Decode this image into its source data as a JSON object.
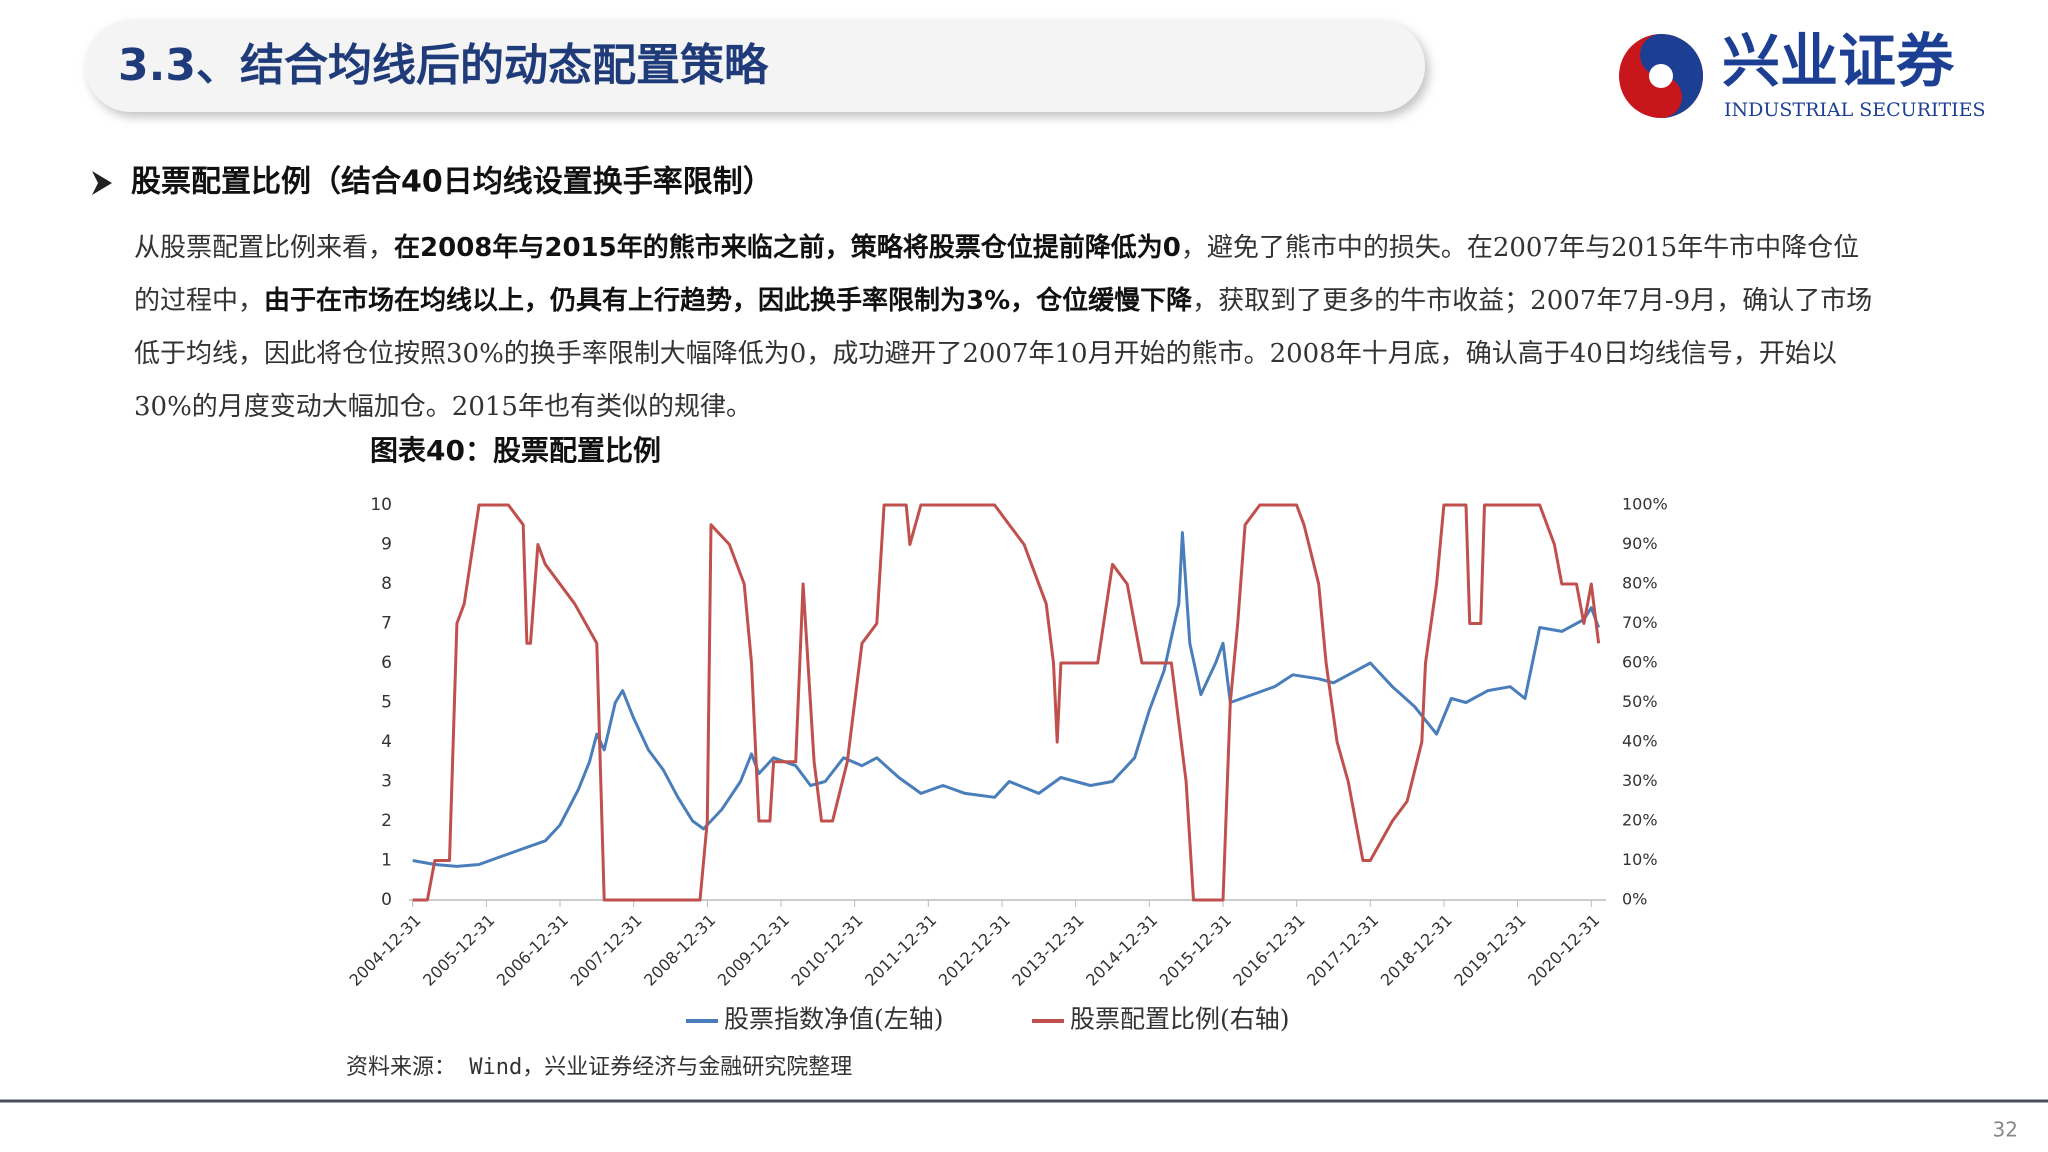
{
  "header": {
    "title": "3.3、结合均线后的动态配置策略",
    "logo_cn": "兴业证券",
    "logo_en": "INDUSTRIAL SECURITIES"
  },
  "bullet": "股票配置比例（结合40日均线设置换手率限制）",
  "paragraph": [
    {
      "text": "从股票配置比例来看，",
      "bold": false
    },
    {
      "text": "在2008年与2015年的熊市来临之前，策略将股票仓位提前降低为0",
      "bold": true
    },
    {
      "text": "，避免了熊市中的损失。在2007年与2015年牛市中降仓位的过程中，",
      "bold": false
    },
    {
      "text": "由于在市场在均线以上，仍具有上行趋势，因此换手率限制为3%，仓位缓慢下降",
      "bold": true
    },
    {
      "text": "，获取到了更多的牛市收益；2007年7月-9月，确认了市场低于均线，因此将仓位按照30%的换手率限制大幅降低为0，成功避开了2007年10月开始的熊市。2008年十月底，确认高于40日均线信号，开始以30%的月度变动大幅加仓。2015年也有类似的规律。",
      "bold": false
    }
  ],
  "chart_data": {
    "type": "line",
    "title": "图表40：股票配置比例",
    "xlim": [
      2004.95,
      2021.2
    ],
    "xticks": [
      {
        "value": 2005,
        "label": "2004-12-31"
      },
      {
        "value": 2006,
        "label": "2005-12-31"
      },
      {
        "value": 2007,
        "label": "2006-12-31"
      },
      {
        "value": 2008,
        "label": "2007-12-31"
      },
      {
        "value": 2009,
        "label": "2008-12-31"
      },
      {
        "value": 2010,
        "label": "2009-12-31"
      },
      {
        "value": 2011,
        "label": "2010-12-31"
      },
      {
        "value": 2012,
        "label": "2011-12-31"
      },
      {
        "value": 2013,
        "label": "2012-12-31"
      },
      {
        "value": 2014,
        "label": "2013-12-31"
      },
      {
        "value": 2015,
        "label": "2014-12-31"
      },
      {
        "value": 2016,
        "label": "2015-12-31"
      },
      {
        "value": 2017,
        "label": "2016-12-31"
      },
      {
        "value": 2018,
        "label": "2017-12-31"
      },
      {
        "value": 2019,
        "label": "2018-12-31"
      },
      {
        "value": 2020,
        "label": "2019-12-31"
      },
      {
        "value": 2021,
        "label": "2020-12-31"
      }
    ],
    "ylim": [
      0,
      10
    ],
    "yticks": [
      0,
      1,
      2,
      3,
      4,
      5,
      6,
      7,
      8,
      9,
      10
    ],
    "y2lim": [
      0,
      100
    ],
    "y2ticks": [
      {
        "value": 0,
        "label": "0%"
      },
      {
        "value": 10,
        "label": "10%"
      },
      {
        "value": 20,
        "label": "20%"
      },
      {
        "value": 30,
        "label": "30%"
      },
      {
        "value": 40,
        "label": "40%"
      },
      {
        "value": 50,
        "label": "50%"
      },
      {
        "value": 60,
        "label": "60%"
      },
      {
        "value": 70,
        "label": "70%"
      },
      {
        "value": 80,
        "label": "80%"
      },
      {
        "value": 90,
        "label": "90%"
      },
      {
        "value": 100,
        "label": "100%"
      }
    ],
    "series": [
      {
        "name": "股票指数净值(左轴)",
        "color": "#4a7ebb",
        "x": [
          2005.0,
          2005.3,
          2005.6,
          2005.9,
          2006.2,
          2006.5,
          2006.8,
          2007.0,
          2007.25,
          2007.4,
          2007.5,
          2007.6,
          2007.75,
          2007.85,
          2008.0,
          2008.2,
          2008.4,
          2008.6,
          2008.8,
          2008.95,
          2009.2,
          2009.45,
          2009.6,
          2009.7,
          2009.9,
          2010.2,
          2010.4,
          2010.6,
          2010.85,
          2011.1,
          2011.3,
          2011.6,
          2011.9,
          2012.2,
          2012.5,
          2012.9,
          2013.1,
          2013.5,
          2013.8,
          2014.2,
          2014.5,
          2014.8,
          2015.0,
          2015.2,
          2015.4,
          2015.45,
          2015.55,
          2015.7,
          2015.9,
          2016.0,
          2016.1,
          2016.4,
          2016.7,
          2016.95,
          2017.3,
          2017.5,
          2017.8,
          2018.0,
          2018.3,
          2018.6,
          2018.9,
          2019.1,
          2019.3,
          2019.6,
          2019.9,
          2020.1,
          2020.3,
          2020.6,
          2020.9,
          2021.0,
          2021.1
        ],
        "values": [
          1.0,
          0.9,
          0.85,
          0.9,
          1.1,
          1.3,
          1.5,
          1.9,
          2.8,
          3.5,
          4.2,
          3.8,
          5.0,
          5.3,
          4.6,
          3.8,
          3.3,
          2.6,
          2.0,
          1.8,
          2.3,
          3.0,
          3.7,
          3.2,
          3.6,
          3.4,
          2.9,
          3.0,
          3.6,
          3.4,
          3.6,
          3.1,
          2.7,
          2.9,
          2.7,
          2.6,
          3.0,
          2.7,
          3.1,
          2.9,
          3.0,
          3.6,
          4.8,
          5.8,
          7.5,
          9.3,
          6.5,
          5.2,
          6.0,
          6.5,
          5.0,
          5.2,
          5.4,
          5.7,
          5.6,
          5.5,
          5.8,
          6.0,
          5.4,
          4.9,
          4.2,
          5.1,
          5.0,
          5.3,
          5.4,
          5.1,
          6.9,
          6.8,
          7.1,
          7.4,
          6.9
        ]
      },
      {
        "name": "股票配置比例(右轴)",
        "color": "#c0504d",
        "axis": "y2",
        "x": [
          2005.0,
          2005.2,
          2005.3,
          2005.5,
          2005.6,
          2005.7,
          2005.9,
          2006.3,
          2006.5,
          2006.55,
          2006.6,
          2006.7,
          2006.8,
          2007.2,
          2007.5,
          2007.6,
          2008.0,
          2008.9,
          2009.0,
          2009.05,
          2009.3,
          2009.5,
          2009.6,
          2009.7,
          2009.85,
          2009.9,
          2010.2,
          2010.3,
          2010.45,
          2010.55,
          2010.7,
          2010.9,
          2011.1,
          2011.3,
          2011.4,
          2011.7,
          2011.75,
          2011.9,
          2012.9,
          2013.1,
          2013.3,
          2013.6,
          2013.7,
          2013.75,
          2013.8,
          2014.1,
          2014.3,
          2014.5,
          2014.7,
          2014.9,
          2015.3,
          2015.5,
          2015.6,
          2016.0,
          2016.1,
          2016.2,
          2016.3,
          2016.5,
          2017.0,
          2017.1,
          2017.3,
          2017.4,
          2017.55,
          2017.7,
          2017.9,
          2018.0,
          2018.3,
          2018.5,
          2018.7,
          2018.75,
          2018.9,
          2019.0,
          2019.3,
          2019.35,
          2019.5,
          2019.55,
          2020.3,
          2020.5,
          2020.6,
          2020.8,
          2020.9,
          2021.0,
          2021.1
        ],
        "values": [
          0,
          0,
          10,
          10,
          70,
          75,
          100,
          100,
          95,
          65,
          65,
          90,
          85,
          75,
          65,
          0,
          0,
          0,
          20,
          95,
          90,
          80,
          60,
          20,
          20,
          35,
          35,
          80,
          35,
          20,
          20,
          35,
          65,
          70,
          100,
          100,
          90,
          100,
          100,
          95,
          90,
          75,
          60,
          40,
          60,
          60,
          60,
          85,
          80,
          60,
          60,
          30,
          0,
          0,
          50,
          70,
          95,
          100,
          100,
          95,
          80,
          60,
          40,
          30,
          10,
          10,
          20,
          25,
          40,
          60,
          80,
          100,
          100,
          70,
          70,
          100,
          100,
          90,
          80,
          80,
          70,
          80,
          65
        ]
      }
    ],
    "source": "资料来源： Wind，兴业证券经济与金融研究院整理"
  },
  "page_number": "32"
}
